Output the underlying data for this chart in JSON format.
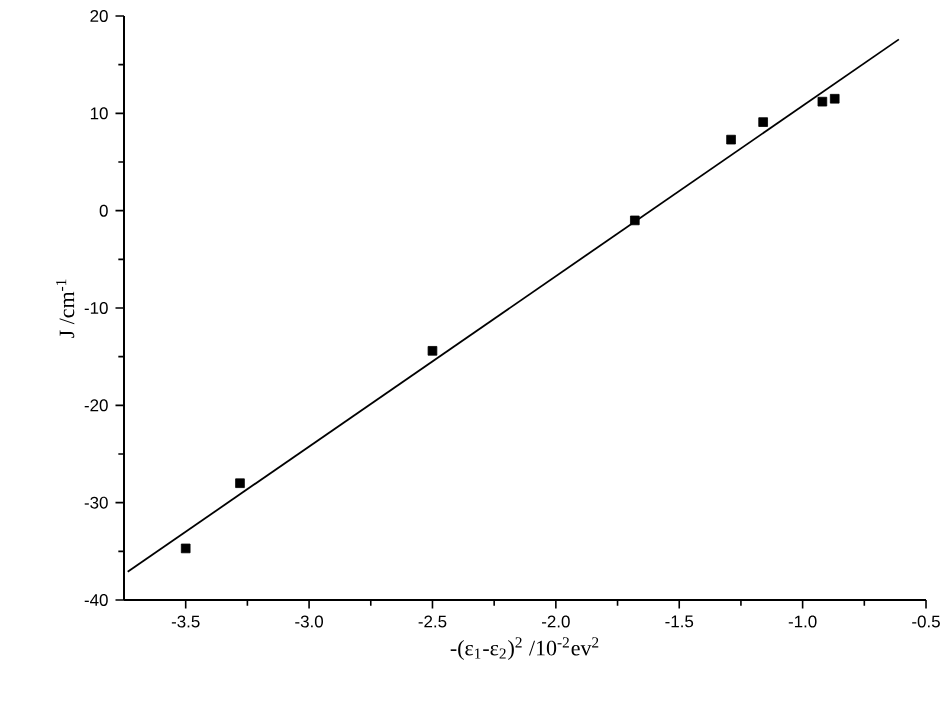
{
  "chart_data": {
    "type": "scatter",
    "xlabel": "-(ε$_{1}$-ε$_{2}$)$^{2}$ /10$^{-2}$ev$^{2}$",
    "ylabel": "J /cm$^{-1}$",
    "xlim": [
      -3.75,
      -0.5
    ],
    "ylim": [
      -40,
      20
    ],
    "xticks": [
      {
        "value": -3.5,
        "label": "-3.5"
      },
      {
        "value": -3.0,
        "label": "-3.0"
      },
      {
        "value": -2.5,
        "label": "-2.5"
      },
      {
        "value": -2.0,
        "label": "-2.0"
      },
      {
        "value": -1.5,
        "label": "-1.5"
      },
      {
        "value": -1.0,
        "label": "-1.0"
      },
      {
        "value": -0.5,
        "label": "-0.5"
      }
    ],
    "yticks": [
      -40,
      -30,
      -20,
      -10,
      0,
      10,
      20
    ],
    "marker": "square",
    "grid": false,
    "series": [
      {
        "color": "#000000",
        "x": [
          -3.5,
          -3.28,
          -2.5,
          -1.68,
          -1.29,
          -1.16,
          -0.92,
          -0.87
        ],
        "values": [
          -34.7,
          -28.0,
          -14.4,
          -1.0,
          7.3,
          9.1,
          11.2,
          11.5
        ]
      },
      {
        "type": "line",
        "marker": "none",
        "color": "#000000",
        "line_style": "solid",
        "x": [
          -3.735,
          -0.61
        ],
        "values": [
          -37.1,
          17.6
        ]
      }
    ]
  }
}
